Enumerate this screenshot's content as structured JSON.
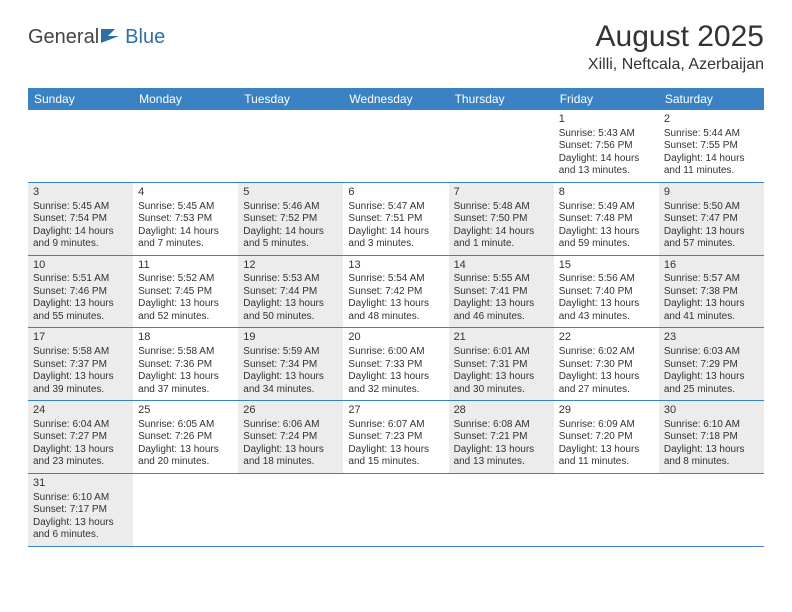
{
  "logo": {
    "part1": "General",
    "part2": "Blue"
  },
  "title": "August 2025",
  "location": "Xilli, Neftcala, Azerbaijan",
  "colors": {
    "header_bg": "#3b82c4",
    "header_text": "#ffffff",
    "shade_bg": "#ececec",
    "text": "#333333",
    "border": "#3b82c4"
  },
  "fonts": {
    "title_size": 30,
    "location_size": 16,
    "dow_size": 12,
    "cell_size": 10
  },
  "daysOfWeek": [
    "Sunday",
    "Monday",
    "Tuesday",
    "Wednesday",
    "Thursday",
    "Friday",
    "Saturday"
  ],
  "weeks": [
    [
      null,
      null,
      null,
      null,
      null,
      {
        "n": "1",
        "sr": "Sunrise: 5:43 AM",
        "ss": "Sunset: 7:56 PM",
        "dl": "Daylight: 14 hours and 13 minutes."
      },
      {
        "n": "2",
        "sr": "Sunrise: 5:44 AM",
        "ss": "Sunset: 7:55 PM",
        "dl": "Daylight: 14 hours and 11 minutes."
      }
    ],
    [
      {
        "n": "3",
        "sr": "Sunrise: 5:45 AM",
        "ss": "Sunset: 7:54 PM",
        "dl": "Daylight: 14 hours and 9 minutes.",
        "shade": true
      },
      {
        "n": "4",
        "sr": "Sunrise: 5:45 AM",
        "ss": "Sunset: 7:53 PM",
        "dl": "Daylight: 14 hours and 7 minutes."
      },
      {
        "n": "5",
        "sr": "Sunrise: 5:46 AM",
        "ss": "Sunset: 7:52 PM",
        "dl": "Daylight: 14 hours and 5 minutes.",
        "shade": true
      },
      {
        "n": "6",
        "sr": "Sunrise: 5:47 AM",
        "ss": "Sunset: 7:51 PM",
        "dl": "Daylight: 14 hours and 3 minutes."
      },
      {
        "n": "7",
        "sr": "Sunrise: 5:48 AM",
        "ss": "Sunset: 7:50 PM",
        "dl": "Daylight: 14 hours and 1 minute.",
        "shade": true
      },
      {
        "n": "8",
        "sr": "Sunrise: 5:49 AM",
        "ss": "Sunset: 7:48 PM",
        "dl": "Daylight: 13 hours and 59 minutes."
      },
      {
        "n": "9",
        "sr": "Sunrise: 5:50 AM",
        "ss": "Sunset: 7:47 PM",
        "dl": "Daylight: 13 hours and 57 minutes.",
        "shade": true
      }
    ],
    [
      {
        "n": "10",
        "sr": "Sunrise: 5:51 AM",
        "ss": "Sunset: 7:46 PM",
        "dl": "Daylight: 13 hours and 55 minutes.",
        "shade": true
      },
      {
        "n": "11",
        "sr": "Sunrise: 5:52 AM",
        "ss": "Sunset: 7:45 PM",
        "dl": "Daylight: 13 hours and 52 minutes."
      },
      {
        "n": "12",
        "sr": "Sunrise: 5:53 AM",
        "ss": "Sunset: 7:44 PM",
        "dl": "Daylight: 13 hours and 50 minutes.",
        "shade": true
      },
      {
        "n": "13",
        "sr": "Sunrise: 5:54 AM",
        "ss": "Sunset: 7:42 PM",
        "dl": "Daylight: 13 hours and 48 minutes."
      },
      {
        "n": "14",
        "sr": "Sunrise: 5:55 AM",
        "ss": "Sunset: 7:41 PM",
        "dl": "Daylight: 13 hours and 46 minutes.",
        "shade": true
      },
      {
        "n": "15",
        "sr": "Sunrise: 5:56 AM",
        "ss": "Sunset: 7:40 PM",
        "dl": "Daylight: 13 hours and 43 minutes."
      },
      {
        "n": "16",
        "sr": "Sunrise: 5:57 AM",
        "ss": "Sunset: 7:38 PM",
        "dl": "Daylight: 13 hours and 41 minutes.",
        "shade": true
      }
    ],
    [
      {
        "n": "17",
        "sr": "Sunrise: 5:58 AM",
        "ss": "Sunset: 7:37 PM",
        "dl": "Daylight: 13 hours and 39 minutes.",
        "shade": true
      },
      {
        "n": "18",
        "sr": "Sunrise: 5:58 AM",
        "ss": "Sunset: 7:36 PM",
        "dl": "Daylight: 13 hours and 37 minutes."
      },
      {
        "n": "19",
        "sr": "Sunrise: 5:59 AM",
        "ss": "Sunset: 7:34 PM",
        "dl": "Daylight: 13 hours and 34 minutes.",
        "shade": true
      },
      {
        "n": "20",
        "sr": "Sunrise: 6:00 AM",
        "ss": "Sunset: 7:33 PM",
        "dl": "Daylight: 13 hours and 32 minutes."
      },
      {
        "n": "21",
        "sr": "Sunrise: 6:01 AM",
        "ss": "Sunset: 7:31 PM",
        "dl": "Daylight: 13 hours and 30 minutes.",
        "shade": true
      },
      {
        "n": "22",
        "sr": "Sunrise: 6:02 AM",
        "ss": "Sunset: 7:30 PM",
        "dl": "Daylight: 13 hours and 27 minutes."
      },
      {
        "n": "23",
        "sr": "Sunrise: 6:03 AM",
        "ss": "Sunset: 7:29 PM",
        "dl": "Daylight: 13 hours and 25 minutes.",
        "shade": true
      }
    ],
    [
      {
        "n": "24",
        "sr": "Sunrise: 6:04 AM",
        "ss": "Sunset: 7:27 PM",
        "dl": "Daylight: 13 hours and 23 minutes.",
        "shade": true
      },
      {
        "n": "25",
        "sr": "Sunrise: 6:05 AM",
        "ss": "Sunset: 7:26 PM",
        "dl": "Daylight: 13 hours and 20 minutes."
      },
      {
        "n": "26",
        "sr": "Sunrise: 6:06 AM",
        "ss": "Sunset: 7:24 PM",
        "dl": "Daylight: 13 hours and 18 minutes.",
        "shade": true
      },
      {
        "n": "27",
        "sr": "Sunrise: 6:07 AM",
        "ss": "Sunset: 7:23 PM",
        "dl": "Daylight: 13 hours and 15 minutes."
      },
      {
        "n": "28",
        "sr": "Sunrise: 6:08 AM",
        "ss": "Sunset: 7:21 PM",
        "dl": "Daylight: 13 hours and 13 minutes.",
        "shade": true
      },
      {
        "n": "29",
        "sr": "Sunrise: 6:09 AM",
        "ss": "Sunset: 7:20 PM",
        "dl": "Daylight: 13 hours and 11 minutes."
      },
      {
        "n": "30",
        "sr": "Sunrise: 6:10 AM",
        "ss": "Sunset: 7:18 PM",
        "dl": "Daylight: 13 hours and 8 minutes.",
        "shade": true
      }
    ],
    [
      {
        "n": "31",
        "sr": "Sunrise: 6:10 AM",
        "ss": "Sunset: 7:17 PM",
        "dl": "Daylight: 13 hours and 6 minutes.",
        "shade": true
      },
      null,
      null,
      null,
      null,
      null,
      null
    ]
  ]
}
